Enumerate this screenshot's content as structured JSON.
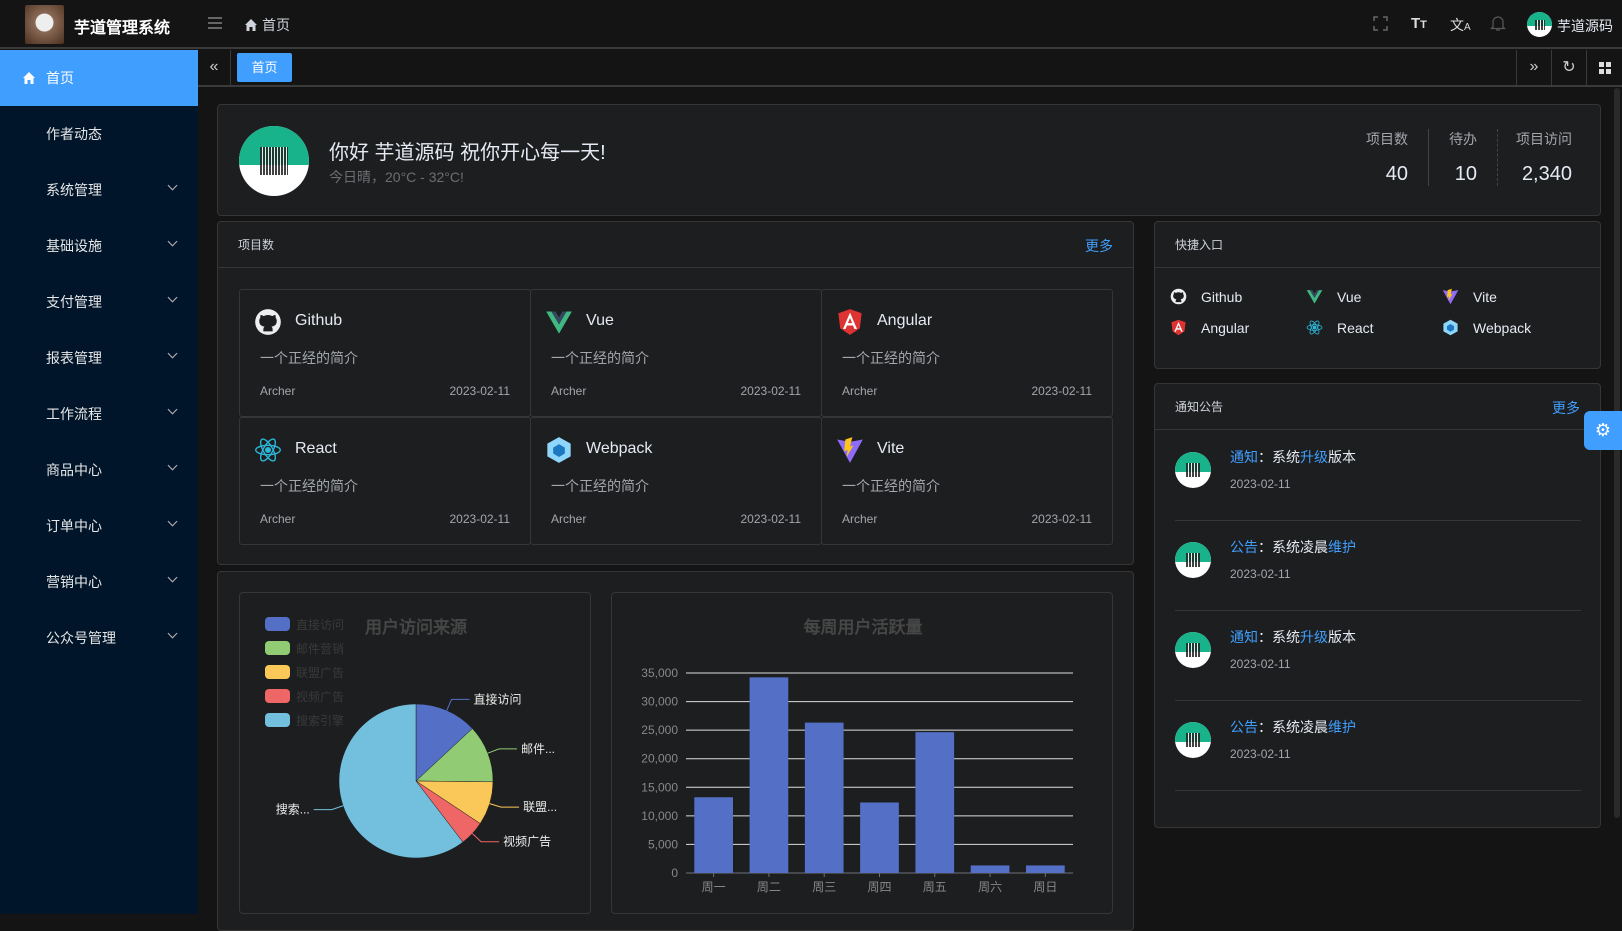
{
  "header": {
    "app_title": "芋道管理系统",
    "breadcrumb": "首页",
    "username": "芋道源码",
    "icons": [
      "menu-fold-icon",
      "home-icon",
      "fullscreen-icon",
      "font-size-icon",
      "translate-icon",
      "bell-icon"
    ]
  },
  "sidebar": {
    "items": [
      {
        "label": "首页",
        "active": true,
        "expandable": false
      },
      {
        "label": "作者动态",
        "expandable": false
      },
      {
        "label": "系统管理",
        "expandable": true
      },
      {
        "label": "基础设施",
        "expandable": true
      },
      {
        "label": "支付管理",
        "expandable": true
      },
      {
        "label": "报表管理",
        "expandable": true
      },
      {
        "label": "工作流程",
        "expandable": true
      },
      {
        "label": "商品中心",
        "expandable": true
      },
      {
        "label": "订单中心",
        "expandable": true
      },
      {
        "label": "营销中心",
        "expandable": true
      },
      {
        "label": "公众号管理",
        "expandable": true
      }
    ]
  },
  "tabs": {
    "items": [
      {
        "label": "首页",
        "active": true
      }
    ]
  },
  "welcome": {
    "greeting": "你好 芋道源码 祝你开心每一天!",
    "weather": "今日晴，20°C - 32°C!",
    "stats": [
      {
        "label": "项目数",
        "value": "40"
      },
      {
        "label": "待办",
        "value": "10"
      },
      {
        "label": "项目访问",
        "value": "2,340"
      }
    ]
  },
  "projects": {
    "title": "项目数",
    "more": "更多",
    "items": [
      {
        "name": "Github",
        "icon": "github-icon",
        "desc": "一个正经的简介",
        "author": "Archer",
        "date": "2023-02-11"
      },
      {
        "name": "Vue",
        "icon": "vue-icon",
        "desc": "一个正经的简介",
        "author": "Archer",
        "date": "2023-02-11"
      },
      {
        "name": "Angular",
        "icon": "angular-icon",
        "desc": "一个正经的简介",
        "author": "Archer",
        "date": "2023-02-11"
      },
      {
        "name": "React",
        "icon": "react-icon",
        "desc": "一个正经的简介",
        "author": "Archer",
        "date": "2023-02-11"
      },
      {
        "name": "Webpack",
        "icon": "webpack-icon",
        "desc": "一个正经的简介",
        "author": "Archer",
        "date": "2023-02-11"
      },
      {
        "name": "Vite",
        "icon": "vite-icon",
        "desc": "一个正经的简介",
        "author": "Archer",
        "date": "2023-02-11"
      }
    ]
  },
  "shortcuts": {
    "title": "快捷入口",
    "items": [
      {
        "name": "Github",
        "icon": "github-icon"
      },
      {
        "name": "Vue",
        "icon": "vue-icon"
      },
      {
        "name": "Vite",
        "icon": "vite-icon"
      },
      {
        "name": "Angular",
        "icon": "angular-icon"
      },
      {
        "name": "React",
        "icon": "react-icon"
      },
      {
        "name": "Webpack",
        "icon": "webpack-icon"
      }
    ]
  },
  "notices": {
    "title": "通知公告",
    "more": "更多",
    "items": [
      {
        "type": "通知",
        "sep": "：",
        "pre": "系统",
        "hl": "升级",
        "post": "版本",
        "date": "2023-02-11"
      },
      {
        "type": "公告",
        "sep": "：",
        "pre": "系统凌晨",
        "hl": "维护",
        "post": "",
        "date": "2023-02-11"
      },
      {
        "type": "通知",
        "sep": "：",
        "pre": "系统",
        "hl": "升级",
        "post": "版本",
        "date": "2023-02-11"
      },
      {
        "type": "公告",
        "sep": "：",
        "pre": "系统凌晨",
        "hl": "维护",
        "post": "",
        "date": "2023-02-11"
      }
    ]
  },
  "colors": {
    "accent": "#409eff",
    "sidebar_bg": "#001529"
  },
  "chart_data": [
    {
      "type": "pie",
      "title": "用户访问来源",
      "legend_position": "top-left",
      "slices": [
        {
          "name": "直接访问",
          "label": "直接访问",
          "value": 335,
          "color": "#5470c6"
        },
        {
          "name": "邮件营销",
          "label": "邮件...",
          "value": 310,
          "color": "#91cc75"
        },
        {
          "name": "联盟广告",
          "label": "联盟...",
          "value": 234,
          "color": "#fac858"
        },
        {
          "name": "视频广告",
          "label": "视频广告",
          "value": 135,
          "color": "#ee6666"
        },
        {
          "name": "搜索引擎",
          "label": "搜索...",
          "value": 1548,
          "color": "#73c0de"
        }
      ]
    },
    {
      "type": "bar",
      "title": "每周用户活跃量",
      "grid": true,
      "categories": [
        "周一",
        "周二",
        "周三",
        "周四",
        "周五",
        "周六",
        "周日"
      ],
      "values": [
        13253,
        34235,
        26321,
        12340,
        24643,
        1322,
        1324
      ],
      "ylim": [
        0,
        35000
      ],
      "yticks": [
        "0",
        "5,000",
        "10,000",
        "15,000",
        "20,000",
        "25,000",
        "30,000",
        "35,000"
      ],
      "color": "#5470c6"
    }
  ]
}
